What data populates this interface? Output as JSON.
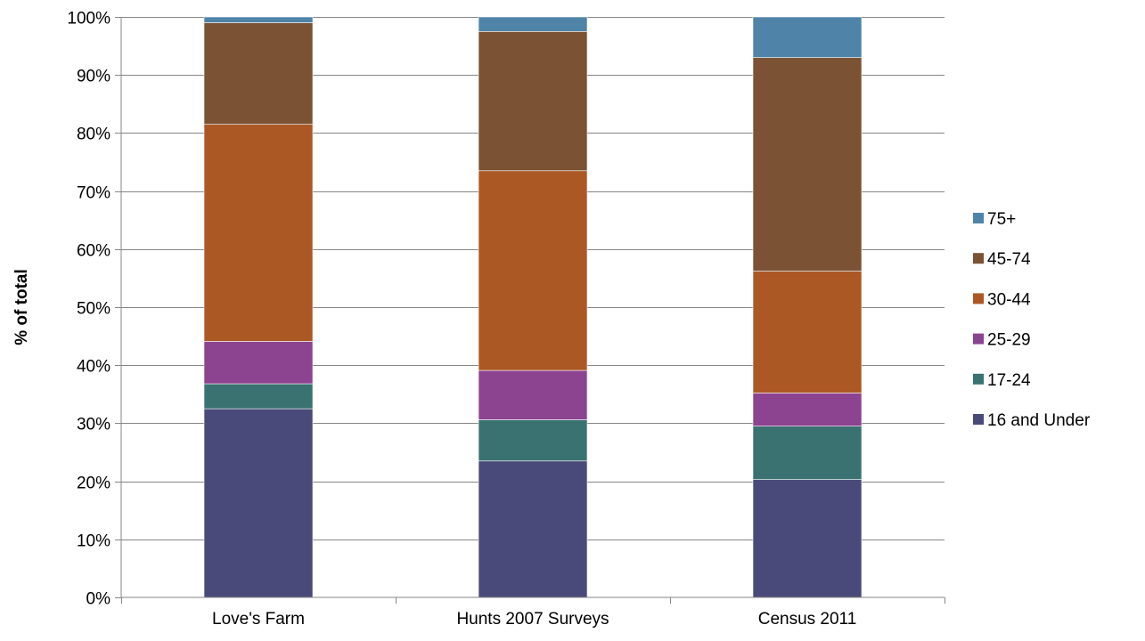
{
  "chart_data": {
    "type": "bar",
    "stacked": true,
    "percent_stacked": true,
    "categories": [
      "Love's Farm",
      "Hunts 2007 Surveys",
      "Census 2011"
    ],
    "series": [
      {
        "name": "16 and Under",
        "color": "#4a4a7a",
        "values": [
          32.5,
          23.5,
          20.3
        ]
      },
      {
        "name": "17-24",
        "color": "#3a7272",
        "values": [
          4.3,
          7.1,
          9.2
        ]
      },
      {
        "name": "25-29",
        "color": "#8c4390",
        "values": [
          7.3,
          8.5,
          5.7
        ]
      },
      {
        "name": "30-44",
        "color": "#ac5825",
        "values": [
          37.4,
          34.4,
          21.0
        ]
      },
      {
        "name": "45-74",
        "color": "#7c5234",
        "values": [
          17.5,
          24.0,
          36.8
        ]
      },
      {
        "name": "75+",
        "color": "#4f84a8",
        "values": [
          1.0,
          2.5,
          7.0
        ]
      }
    ],
    "ylabel": "% of total",
    "xlabel": "",
    "ylim": [
      0,
      100
    ],
    "yticks": [
      "0%",
      "10%",
      "20%",
      "30%",
      "40%",
      "50%",
      "60%",
      "70%",
      "80%",
      "90%",
      "100%"
    ],
    "grid": true,
    "legend": "right"
  }
}
